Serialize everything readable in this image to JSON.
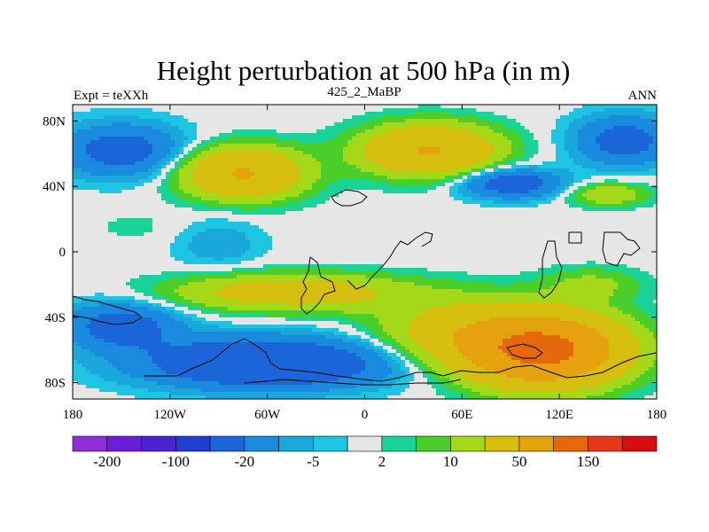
{
  "chart_data": {
    "type": "heatmap",
    "title": "Height perturbation at 500 hPa (in m)",
    "left_string": "Expt = teXXh",
    "center_string": "425_2_MaBP",
    "right_string": "ANN",
    "x_ticks": [
      {
        "value": -180,
        "label": "180"
      },
      {
        "value": -120,
        "label": "120W"
      },
      {
        "value": -60,
        "label": "60W"
      },
      {
        "value": 0,
        "label": "0"
      },
      {
        "value": 60,
        "label": "60E"
      },
      {
        "value": 120,
        "label": "120E"
      },
      {
        "value": 180,
        "label": "180"
      }
    ],
    "y_ticks": [
      {
        "value": 80,
        "label": "80N"
      },
      {
        "value": 40,
        "label": "40N"
      },
      {
        "value": 0,
        "label": "0"
      },
      {
        "value": -40,
        "label": "40S"
      },
      {
        "value": -80,
        "label": "80S"
      }
    ],
    "xlim": [
      -180,
      180
    ],
    "ylim": [
      -90,
      90
    ],
    "levels": [
      -200,
      -150,
      -100,
      -50,
      -20,
      -10,
      -5,
      -2,
      2,
      5,
      10,
      20,
      50,
      100,
      150,
      200
    ],
    "colors": [
      "#8e2ed8",
      "#6a1ed8",
      "#4a22d0",
      "#1f3fd0",
      "#1a66d8",
      "#1a8ade",
      "#1aa8dc",
      "#1ec5e2",
      "#e6e6e6",
      "#19d398",
      "#4ace2a",
      "#a6d81a",
      "#d6be0e",
      "#e6a20e",
      "#e6680c",
      "#e63816",
      "#d80e0e"
    ],
    "colorbar_labels": [
      {
        "level": -200,
        "label": "-200"
      },
      {
        "level": -100,
        "label": "-100"
      },
      {
        "level": -20,
        "label": "-20"
      },
      {
        "level": -5,
        "label": "-5"
      },
      {
        "level": 2,
        "label": "2"
      },
      {
        "level": 10,
        "label": "10"
      },
      {
        "level": 50,
        "label": "50"
      },
      {
        "level": 150,
        "label": "150"
      }
    ],
    "field_centers": [
      {
        "lon": -150,
        "lat": 62,
        "value": -28,
        "rlon": 38,
        "rlat": 16
      },
      {
        "lon": -75,
        "lat": 48,
        "value": 52,
        "rlon": 36,
        "rlat": 15
      },
      {
        "lon": 40,
        "lat": 62,
        "value": 52,
        "rlon": 40,
        "rlat": 15
      },
      {
        "lon": 90,
        "lat": 42,
        "value": -32,
        "rlon": 30,
        "rlat": 9
      },
      {
        "lon": 160,
        "lat": 68,
        "value": -28,
        "rlon": 30,
        "rlat": 15
      },
      {
        "lon": 150,
        "lat": 35,
        "value": 18,
        "rlon": 24,
        "rlat": 7
      },
      {
        "lon": -45,
        "lat": -25,
        "value": 32,
        "rlon": 70,
        "rlat": 11
      },
      {
        "lon": 110,
        "lat": -60,
        "value": 115,
        "rlon": 45,
        "rlat": 20
      },
      {
        "lon": 60,
        "lat": -50,
        "value": 30,
        "rlon": 50,
        "rlat": 20
      },
      {
        "lon": -60,
        "lat": -68,
        "value": -45,
        "rlon": 75,
        "rlat": 15
      },
      {
        "lon": -150,
        "lat": -45,
        "value": -28,
        "rlon": 35,
        "rlat": 14
      },
      {
        "lon": -90,
        "lat": 5,
        "value": -8,
        "rlon": 28,
        "rlat": 16
      },
      {
        "lon": 140,
        "lat": -20,
        "value": 12,
        "rlon": 30,
        "rlat": 10
      },
      {
        "lon": -140,
        "lat": 15,
        "value": 3,
        "rlon": 30,
        "rlat": 10
      }
    ]
  }
}
